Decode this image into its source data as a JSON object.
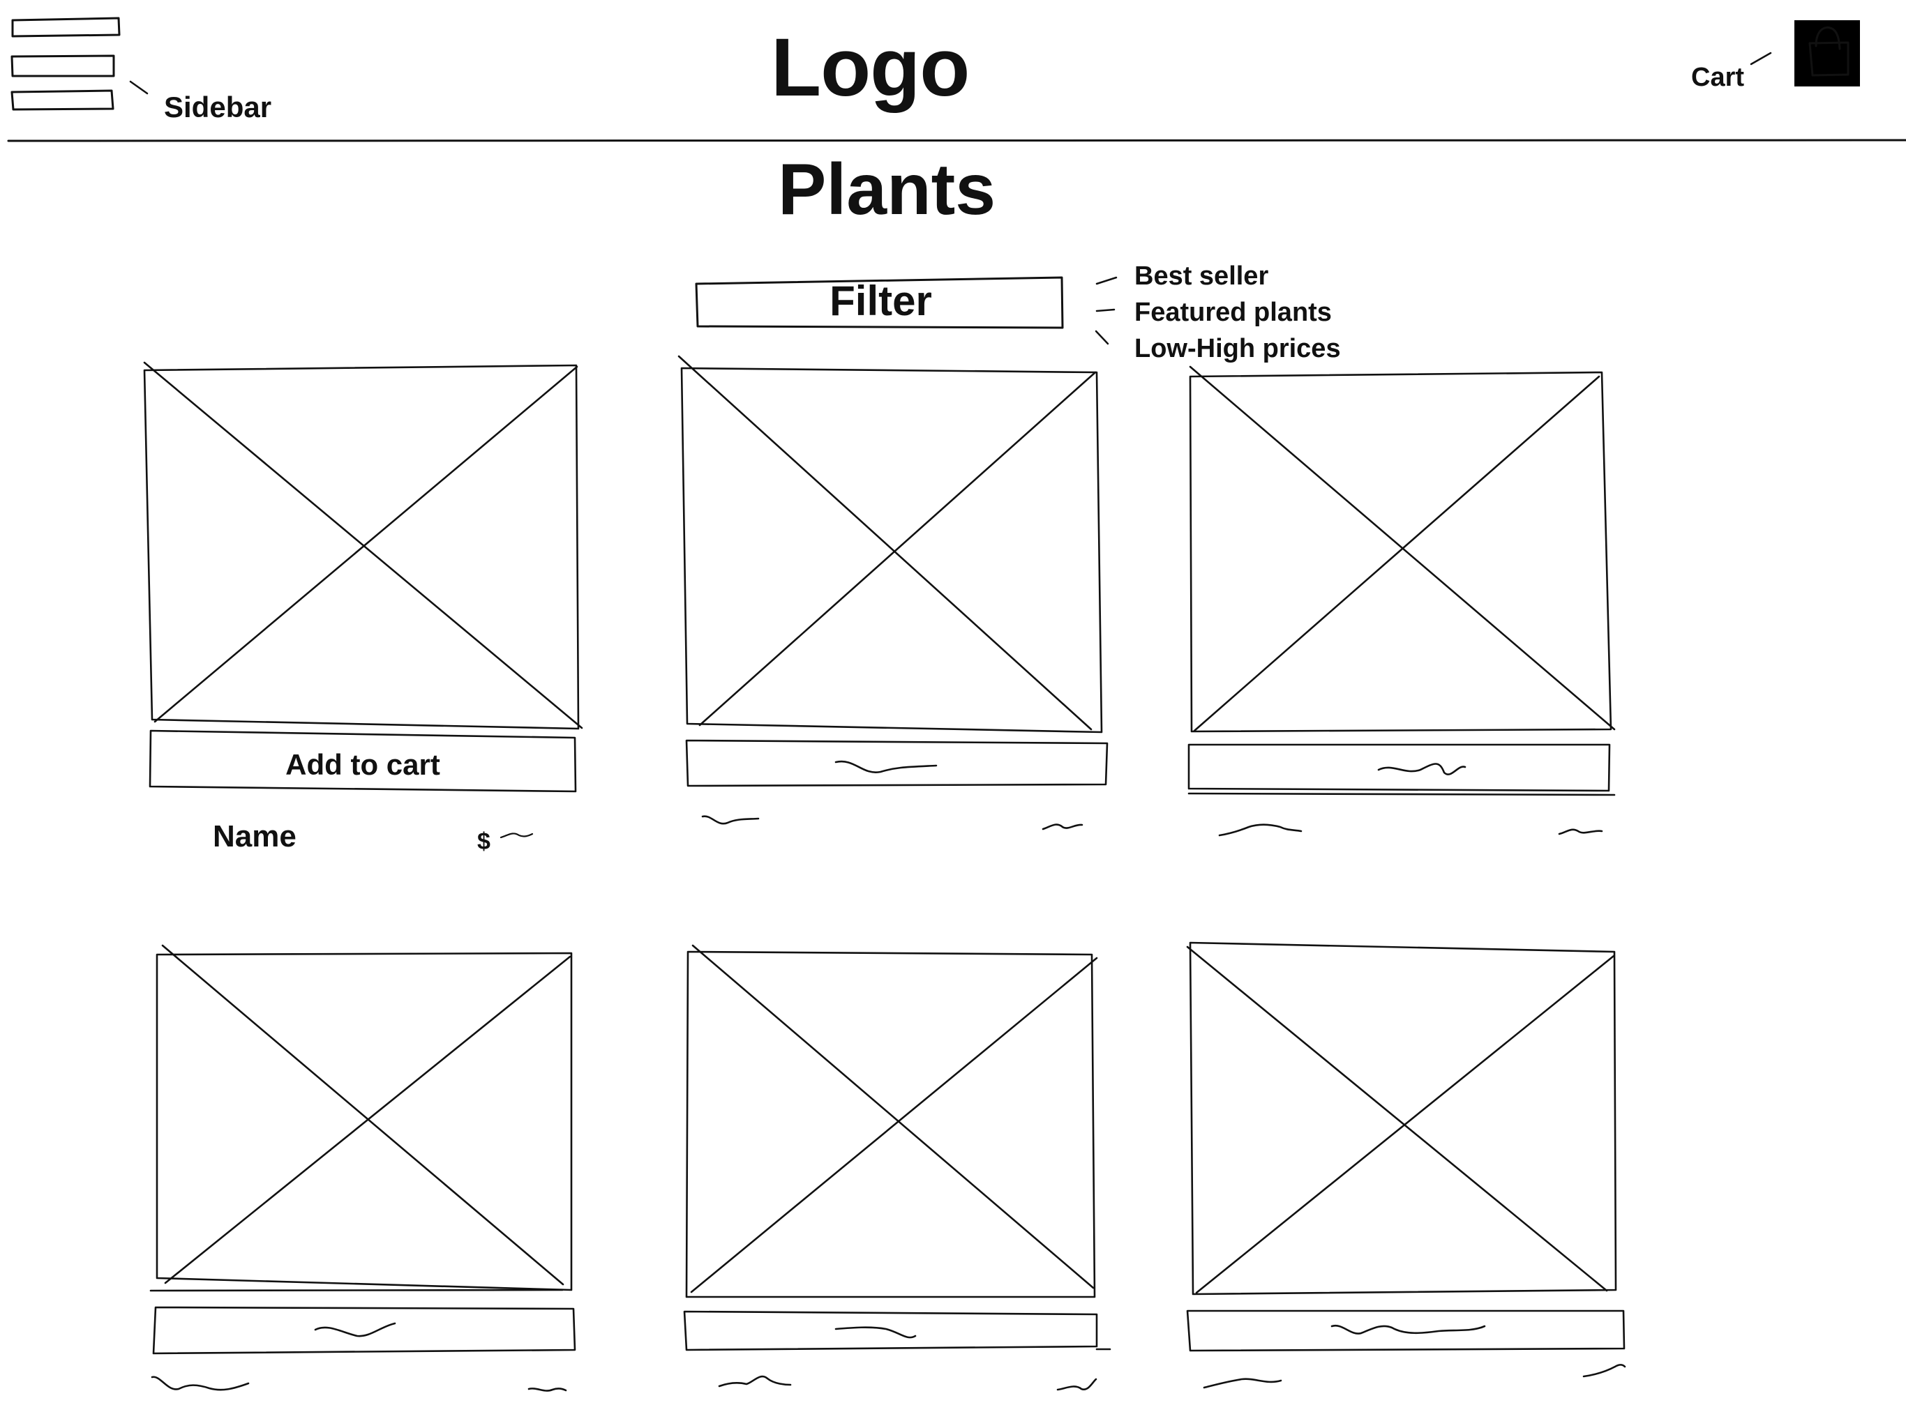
{
  "header": {
    "logo": "Logo",
    "sidebar_label": "Sidebar",
    "cart_label": "Cart",
    "menu_icon": "hamburger-menu-icon",
    "cart_icon": "shopping-bag-icon"
  },
  "main": {
    "title": "Plants",
    "filter": {
      "label": "Filter",
      "options": [
        "Best seller",
        "Featured plants",
        "Low-High prices"
      ]
    },
    "products": [
      {
        "button_label": "Add to cart",
        "name": "Name",
        "price": "$",
        "image_icon": "image-placeholder-icon"
      },
      {
        "button_label": "",
        "name": "",
        "price": "",
        "image_icon": "image-placeholder-icon"
      },
      {
        "button_label": "",
        "name": "",
        "price": "",
        "image_icon": "image-placeholder-icon"
      },
      {
        "button_label": "",
        "name": "",
        "price": "",
        "image_icon": "image-placeholder-icon"
      },
      {
        "button_label": "",
        "name": "",
        "price": "",
        "image_icon": "image-placeholder-icon"
      },
      {
        "button_label": "",
        "name": "",
        "price": "",
        "image_icon": "image-placeholder-icon"
      }
    ]
  }
}
